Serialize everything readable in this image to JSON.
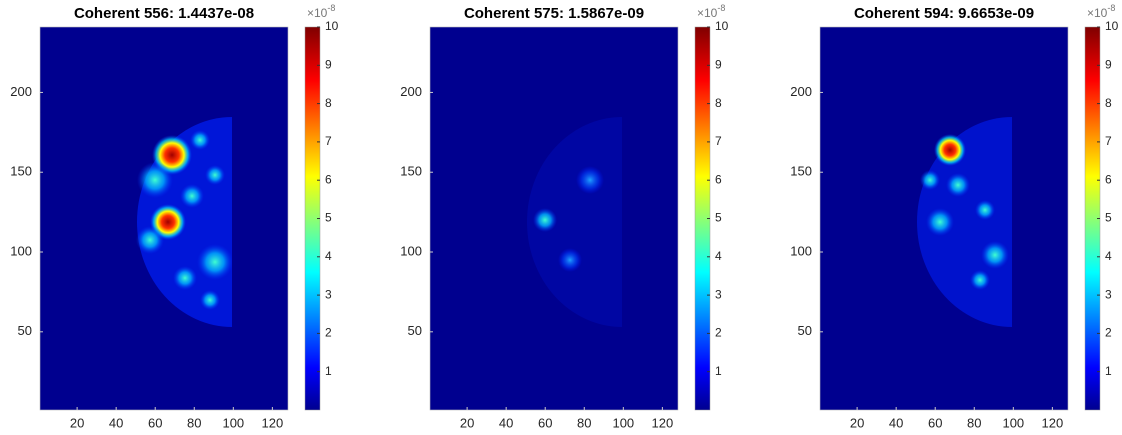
{
  "chart_data": [
    {
      "type": "heatmap",
      "title": "Coherent 556: 1.4437e-08",
      "xlim": [
        1,
        128
      ],
      "xticks": [
        20,
        40,
        60,
        80,
        100,
        120
      ],
      "ylim": [
        1,
        241
      ],
      "yticks": [
        50,
        100,
        150,
        200
      ],
      "clim": [
        0,
        10
      ],
      "cticks": [
        1,
        2,
        3,
        4,
        5,
        6,
        7,
        8,
        9,
        10
      ],
      "colormap": "jet",
      "colorbar_multiplier": "×10",
      "colorbar_exponent": "-8"
    },
    {
      "type": "heatmap",
      "title": "Coherent 575: 1.5867e-09",
      "xlim": [
        1,
        128
      ],
      "xticks": [
        20,
        40,
        60,
        80,
        100,
        120
      ],
      "ylim": [
        1,
        241
      ],
      "yticks": [
        50,
        100,
        150,
        200
      ],
      "clim": [
        0,
        10
      ],
      "cticks": [
        1,
        2,
        3,
        4,
        5,
        6,
        7,
        8,
        9,
        10
      ],
      "colormap": "jet",
      "colorbar_multiplier": "×10",
      "colorbar_exponent": "-8"
    },
    {
      "type": "heatmap",
      "title": "Coherent 594: 9.6653e-09",
      "xlim": [
        1,
        128
      ],
      "xticks": [
        20,
        40,
        60,
        80,
        100,
        120
      ],
      "ylim": [
        1,
        241
      ],
      "yticks": [
        50,
        100,
        150,
        200
      ],
      "clim": [
        0,
        10
      ],
      "cticks": [
        1,
        2,
        3,
        4,
        5,
        6,
        7,
        8,
        9,
        10
      ],
      "colormap": "jet",
      "colorbar_multiplier": "×10",
      "colorbar_exponent": "-8"
    }
  ]
}
